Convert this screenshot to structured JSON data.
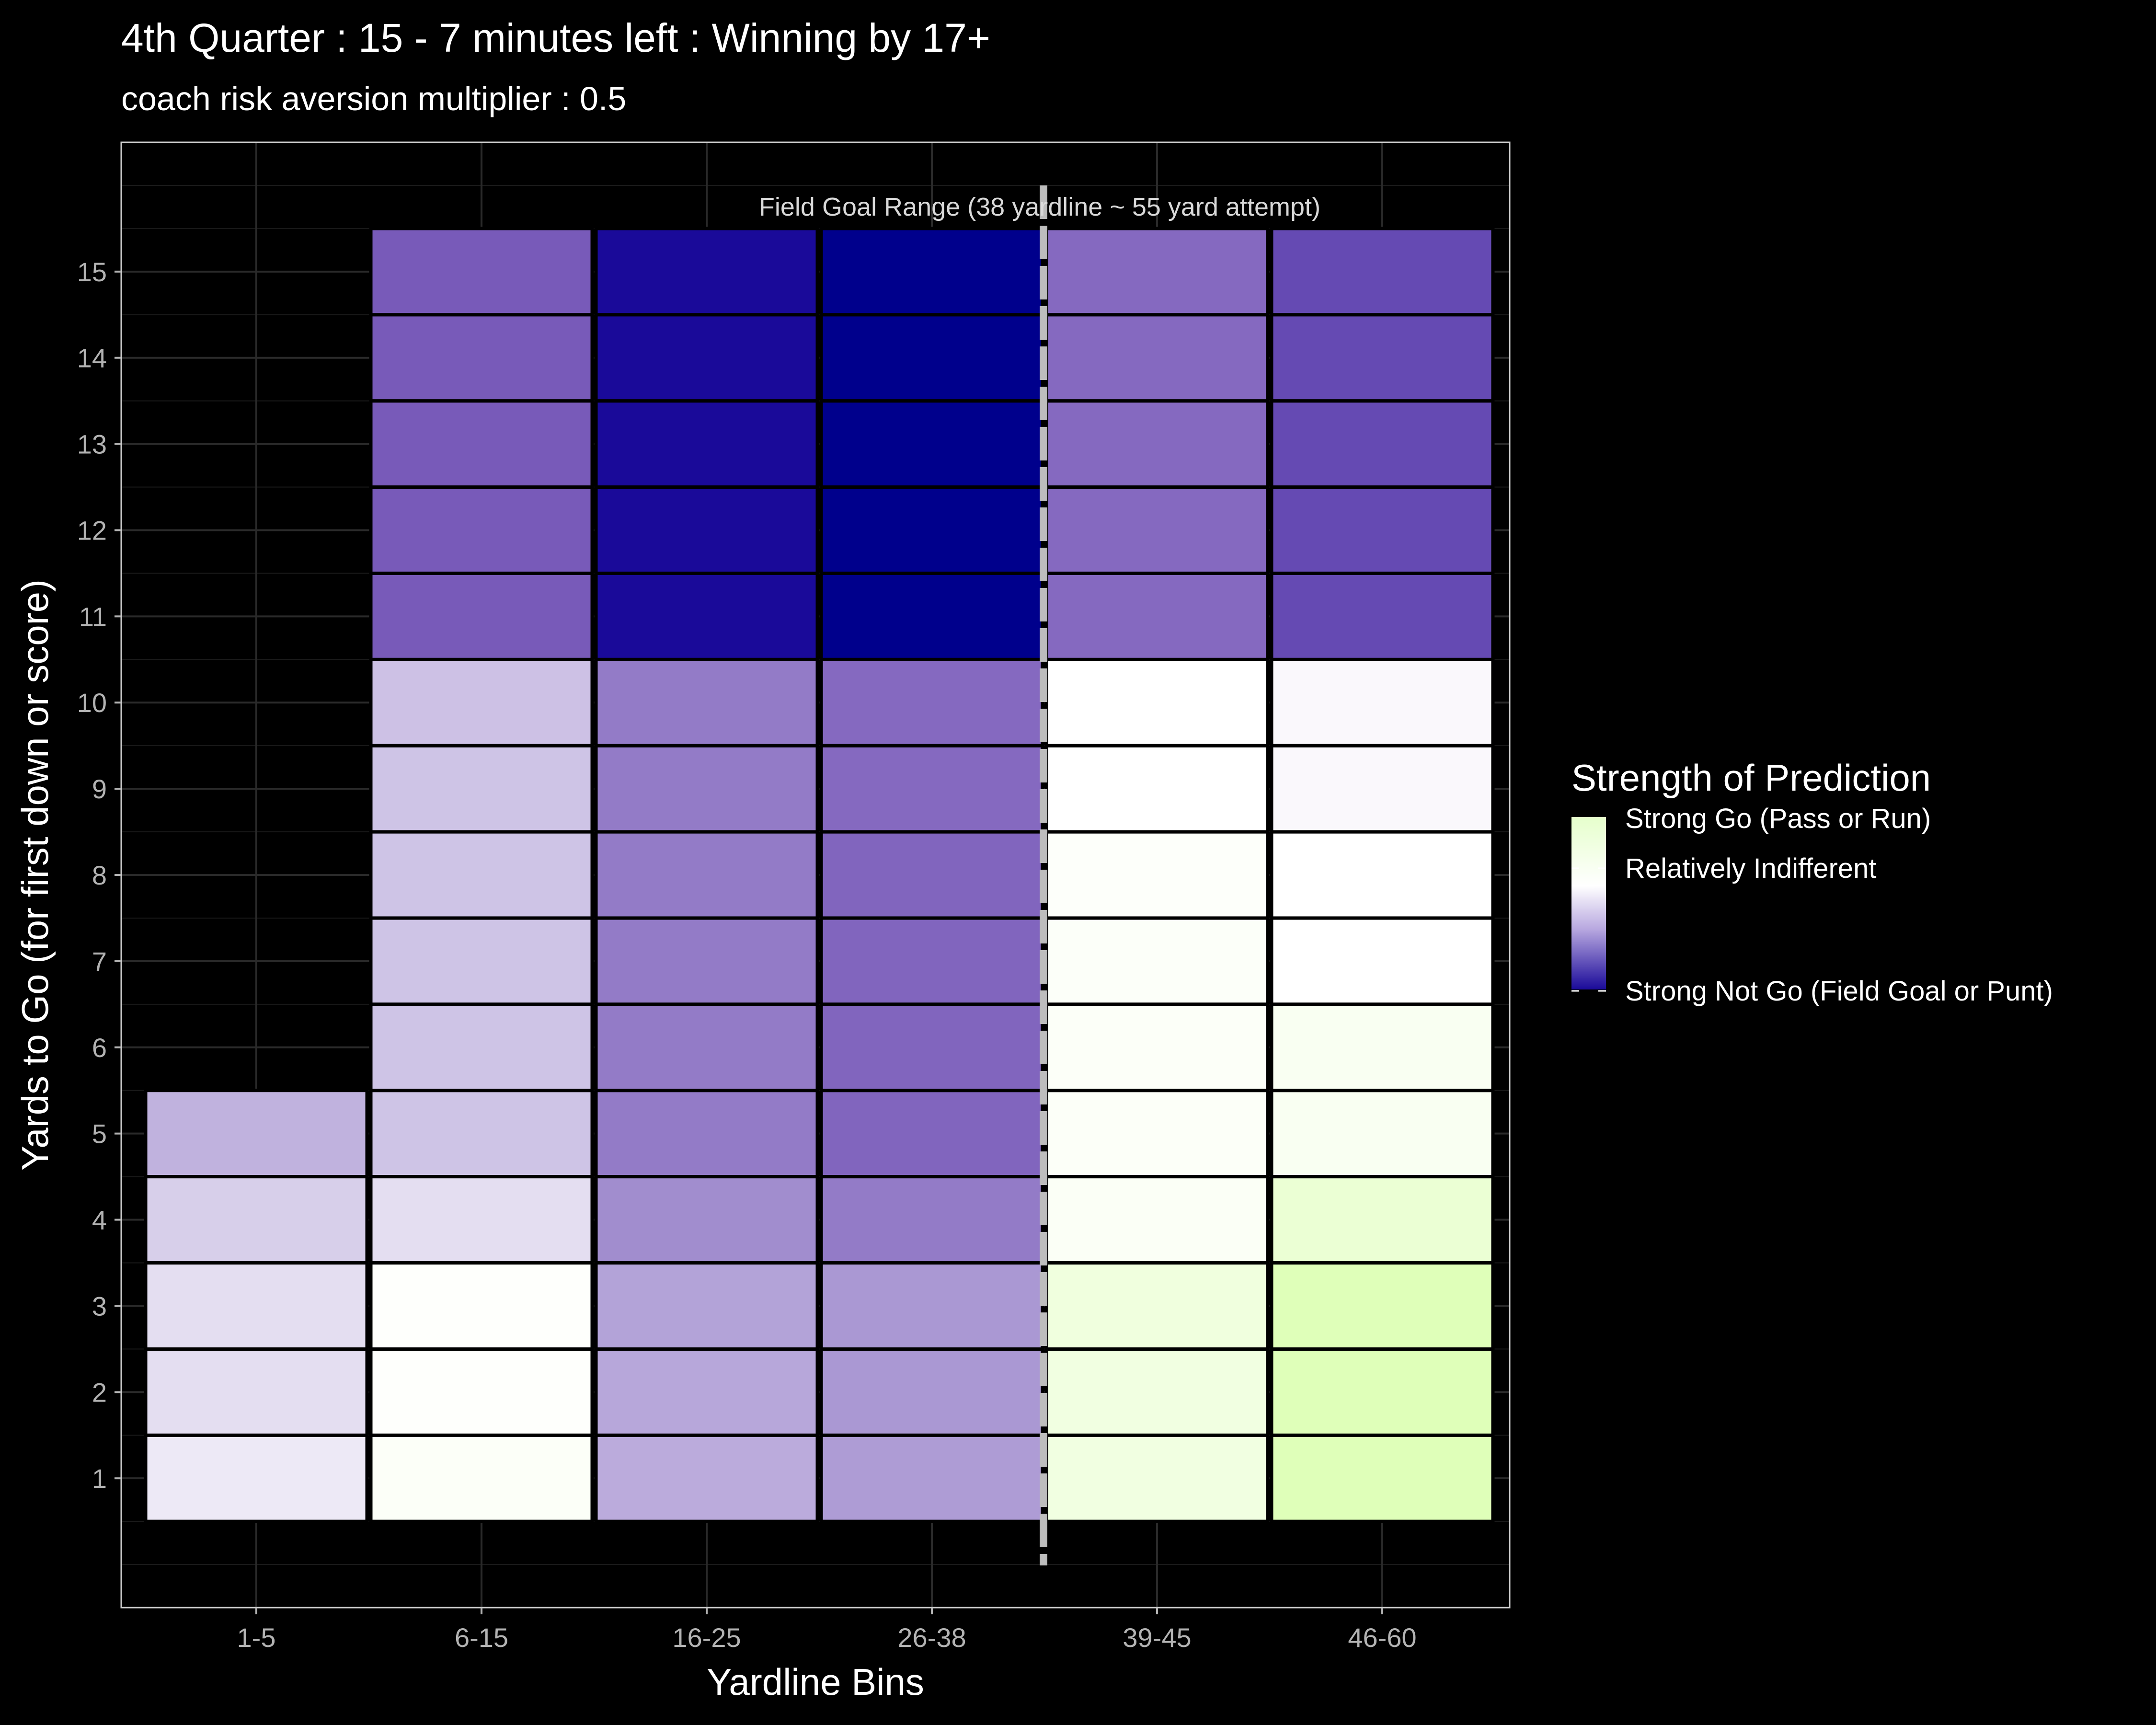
{
  "chart_data": {
    "type": "heatmap",
    "title": "4th Quarter : 15 - 7 minutes left : Winning by 17+",
    "subtitle": "coach risk aversion multiplier : 0.5",
    "xlabel": "Yardline Bins",
    "ylabel": "Yards to Go (for first down or score)",
    "x_categories": [
      "1-5",
      "6-15",
      "16-25",
      "26-38",
      "39-45",
      "46-60"
    ],
    "y_ticks": [
      1,
      2,
      3,
      4,
      5,
      6,
      7,
      8,
      9,
      10,
      11,
      12,
      13,
      14,
      15
    ],
    "ylim": [
      -0.5,
      16.5
    ],
    "annotation": "Field Goal Range (38 yardline ~ 55 yard attempt)",
    "fg_line_after_category": "26-38",
    "value_scale": "−1 = Strong Not Go (Field Goal or Punt), 0 = Relatively Indifferent, +1 = Strong Go (Pass or Run)",
    "legend": {
      "title": "Strength of Prediction",
      "high_label": "Strong Go (Pass or Run)",
      "mid_label": "Relatively Indifferent",
      "low_label": "Strong Not Go (Field Goal or Punt)",
      "high_color": "#e6ffcc",
      "mid_color": "#ffffff",
      "low_color": "#1a0a99"
    },
    "cells": [
      {
        "x": "1-5",
        "y": 1,
        "value": -0.1
      },
      {
        "x": "1-5",
        "y": 2,
        "value": -0.15
      },
      {
        "x": "1-5",
        "y": 3,
        "value": -0.15
      },
      {
        "x": "1-5",
        "y": 4,
        "value": -0.22
      },
      {
        "x": "1-5",
        "y": 5,
        "value": -0.35
      },
      {
        "x": "6-15",
        "y": 1,
        "value": 0.08
      },
      {
        "x": "6-15",
        "y": 2,
        "value": 0.03
      },
      {
        "x": "6-15",
        "y": 3,
        "value": 0.03
      },
      {
        "x": "6-15",
        "y": 4,
        "value": -0.15
      },
      {
        "x": "6-15",
        "y": 5,
        "value": -0.27
      },
      {
        "x": "6-15",
        "y": 6,
        "value": -0.27
      },
      {
        "x": "6-15",
        "y": 7,
        "value": -0.27
      },
      {
        "x": "6-15",
        "y": 8,
        "value": -0.27
      },
      {
        "x": "6-15",
        "y": 9,
        "value": -0.27
      },
      {
        "x": "6-15",
        "y": 10,
        "value": -0.28
      },
      {
        "x": "6-15",
        "y": 11,
        "value": -0.75
      },
      {
        "x": "6-15",
        "y": 12,
        "value": -0.75
      },
      {
        "x": "6-15",
        "y": 13,
        "value": -0.75
      },
      {
        "x": "6-15",
        "y": 14,
        "value": -0.75
      },
      {
        "x": "6-15",
        "y": 15,
        "value": -0.75
      },
      {
        "x": "16-25",
        "y": 1,
        "value": -0.38
      },
      {
        "x": "16-25",
        "y": 2,
        "value": -0.4
      },
      {
        "x": "16-25",
        "y": 3,
        "value": -0.42
      },
      {
        "x": "16-25",
        "y": 4,
        "value": -0.52
      },
      {
        "x": "16-25",
        "y": 5,
        "value": -0.6
      },
      {
        "x": "16-25",
        "y": 6,
        "value": -0.6
      },
      {
        "x": "16-25",
        "y": 7,
        "value": -0.6
      },
      {
        "x": "16-25",
        "y": 8,
        "value": -0.6
      },
      {
        "x": "16-25",
        "y": 9,
        "value": -0.6
      },
      {
        "x": "16-25",
        "y": 10,
        "value": -0.6
      },
      {
        "x": "16-25",
        "y": 11,
        "value": -1.0
      },
      {
        "x": "16-25",
        "y": 12,
        "value": -1.0
      },
      {
        "x": "16-25",
        "y": 13,
        "value": -1.0
      },
      {
        "x": "16-25",
        "y": 14,
        "value": -1.0
      },
      {
        "x": "16-25",
        "y": 15,
        "value": -1.0
      },
      {
        "x": "26-38",
        "y": 1,
        "value": -0.45
      },
      {
        "x": "26-38",
        "y": 2,
        "value": -0.47
      },
      {
        "x": "26-38",
        "y": 3,
        "value": -0.47
      },
      {
        "x": "26-38",
        "y": 4,
        "value": -0.6
      },
      {
        "x": "26-38",
        "y": 5,
        "value": -0.7
      },
      {
        "x": "26-38",
        "y": 6,
        "value": -0.7
      },
      {
        "x": "26-38",
        "y": 7,
        "value": -0.7
      },
      {
        "x": "26-38",
        "y": 8,
        "value": -0.7
      },
      {
        "x": "26-38",
        "y": 9,
        "value": -0.68
      },
      {
        "x": "26-38",
        "y": 10,
        "value": -0.68
      },
      {
        "x": "26-38",
        "y": 11,
        "value": -1.2
      },
      {
        "x": "26-38",
        "y": 12,
        "value": -1.2
      },
      {
        "x": "26-38",
        "y": 13,
        "value": -1.2
      },
      {
        "x": "26-38",
        "y": 14,
        "value": -1.2
      },
      {
        "x": "26-38",
        "y": 15,
        "value": -1.2
      },
      {
        "x": "39-45",
        "y": 1,
        "value": 0.35
      },
      {
        "x": "39-45",
        "y": 2,
        "value": 0.35
      },
      {
        "x": "39-45",
        "y": 3,
        "value": 0.38
      },
      {
        "x": "39-45",
        "y": 4,
        "value": 0.1
      },
      {
        "x": "39-45",
        "y": 5,
        "value": 0.08
      },
      {
        "x": "39-45",
        "y": 6,
        "value": 0.08
      },
      {
        "x": "39-45",
        "y": 7,
        "value": 0.07
      },
      {
        "x": "39-45",
        "y": 8,
        "value": 0.06
      },
      {
        "x": "39-45",
        "y": 9,
        "value": 0.0
      },
      {
        "x": "39-45",
        "y": 10,
        "value": 0.0
      },
      {
        "x": "39-45",
        "y": 11,
        "value": -0.68
      },
      {
        "x": "39-45",
        "y": 12,
        "value": -0.68
      },
      {
        "x": "39-45",
        "y": 13,
        "value": -0.68
      },
      {
        "x": "39-45",
        "y": 14,
        "value": -0.68
      },
      {
        "x": "39-45",
        "y": 15,
        "value": -0.68
      },
      {
        "x": "46-60",
        "y": 1,
        "value": 0.8
      },
      {
        "x": "46-60",
        "y": 2,
        "value": 0.8
      },
      {
        "x": "46-60",
        "y": 3,
        "value": 0.8
      },
      {
        "x": "46-60",
        "y": 4,
        "value": 0.5
      },
      {
        "x": "46-60",
        "y": 5,
        "value": 0.15
      },
      {
        "x": "46-60",
        "y": 6,
        "value": 0.15
      },
      {
        "x": "46-60",
        "y": 7,
        "value": 0.0
      },
      {
        "x": "46-60",
        "y": 8,
        "value": 0.0
      },
      {
        "x": "46-60",
        "y": 9,
        "value": -0.03
      },
      {
        "x": "46-60",
        "y": 10,
        "value": -0.03
      },
      {
        "x": "46-60",
        "y": 11,
        "value": -0.8
      },
      {
        "x": "46-60",
        "y": 12,
        "value": -0.8
      },
      {
        "x": "46-60",
        "y": 13,
        "value": -0.8
      },
      {
        "x": "46-60",
        "y": 14,
        "value": -0.8
      },
      {
        "x": "46-60",
        "y": 15,
        "value": -0.8
      }
    ]
  }
}
